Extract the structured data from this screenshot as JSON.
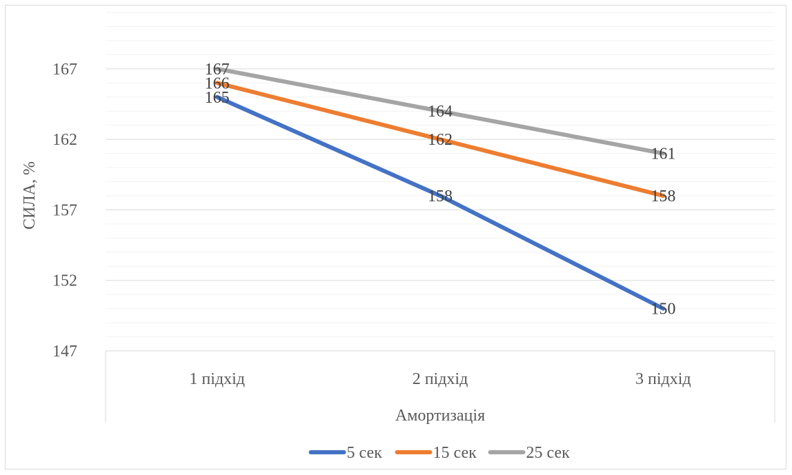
{
  "chart_data": {
    "type": "line",
    "categories": [
      "1 підхід",
      "2 підхід",
      "3 підхід"
    ],
    "series": [
      {
        "name": "5 сек",
        "values": [
          165,
          158,
          150
        ],
        "color": "#4472C4"
      },
      {
        "name": "15 сек",
        "values": [
          166,
          162,
          158
        ],
        "color": "#ED7D31"
      },
      {
        "name": "25 сек",
        "values": [
          167,
          164,
          161
        ],
        "color": "#A5A5A5"
      }
    ],
    "xlabel": "Амортизація",
    "ylabel": "СИЛА, %",
    "ylim": [
      147,
      171
    ],
    "yticks": [
      147,
      152,
      157,
      162,
      167
    ],
    "minor_grid_step": 1,
    "grid": true,
    "legend_position": "bottom",
    "data_labels": true
  }
}
